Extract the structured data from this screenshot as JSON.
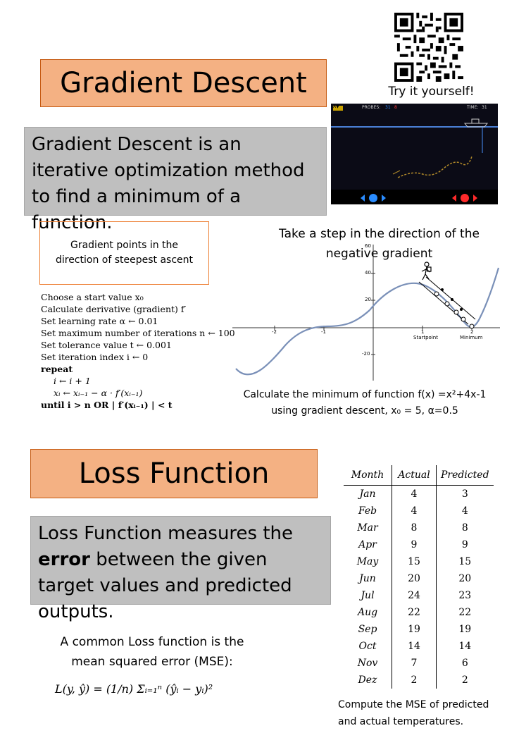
{
  "gradient": {
    "title": "Gradient Descent",
    "definition": "Gradient Descent is an iterative optimization method to find a minimum of a function.",
    "gradient_note": "Gradient points in the direction of steepest ascent",
    "step_caption": "Take a step in the direction of the negative gradient",
    "qr_caption": "Try it yourself!",
    "game": {
      "probes_label": "PROBES:",
      "probes_val": "31",
      "probes_extra": "8",
      "time_label": "TIME:",
      "time_val": "31",
      "badge": "A▼"
    },
    "algorithm": [
      "Choose a start value x₀",
      "Calculate derivative (gradient) f′",
      "Set learning rate α ← 0.01",
      "Set maximum number of iterations n ← 100",
      "Set tolerance value t ← 0.001",
      "Set iteration index i ← 0",
      "repeat",
      "i ← i + 1",
      "xᵢ ← xᵢ₋₁ − α · f′(xᵢ₋₁)",
      "until i > n OR | f′(xᵢ₋₁) | < t"
    ],
    "exercise_line1": "Calculate the minimum of function f(x) =x²+4x-1",
    "exercise_line2": "using gradient descent, x₀ = 5, α=0.5",
    "plot": {
      "y_ticks": [
        "60",
        "40",
        "20",
        "-20"
      ],
      "x_ticks": [
        "-2",
        "-1",
        "1",
        "2"
      ],
      "startpoint_label": "Startpoint",
      "minimum_label": "Minimum"
    }
  },
  "loss": {
    "title": "Loss Function",
    "definition_pre": "Loss Function measures the ",
    "definition_bold": "error",
    "definition_post": " between the given target values and predicted outputs.",
    "mse_intro_line1": "A common Loss function is the",
    "mse_intro_line2": "mean squared error (MSE):",
    "formula": "L(y, ŷ) = (1/n) Σᵢ₌₁ⁿ (ŷᵢ − yᵢ)²",
    "table_caption_line1": "Compute the MSE of predicted",
    "table_caption_line2": "and actual temperatures."
  },
  "table": {
    "headers": [
      "Month",
      "Actual",
      "Predicted"
    ],
    "rows": [
      [
        "Jan",
        "4",
        "3"
      ],
      [
        "Feb",
        "4",
        "4"
      ],
      [
        "Mar",
        "8",
        "8"
      ],
      [
        "Apr",
        "9",
        "9"
      ],
      [
        "May",
        "15",
        "15"
      ],
      [
        "Jun",
        "20",
        "20"
      ],
      [
        "Jul",
        "24",
        "23"
      ],
      [
        "Aug",
        "22",
        "22"
      ],
      [
        "Sep",
        "19",
        "19"
      ],
      [
        "Oct",
        "14",
        "14"
      ],
      [
        "Nov",
        "7",
        "6"
      ],
      [
        "Dez",
        "2",
        "2"
      ]
    ]
  }
}
